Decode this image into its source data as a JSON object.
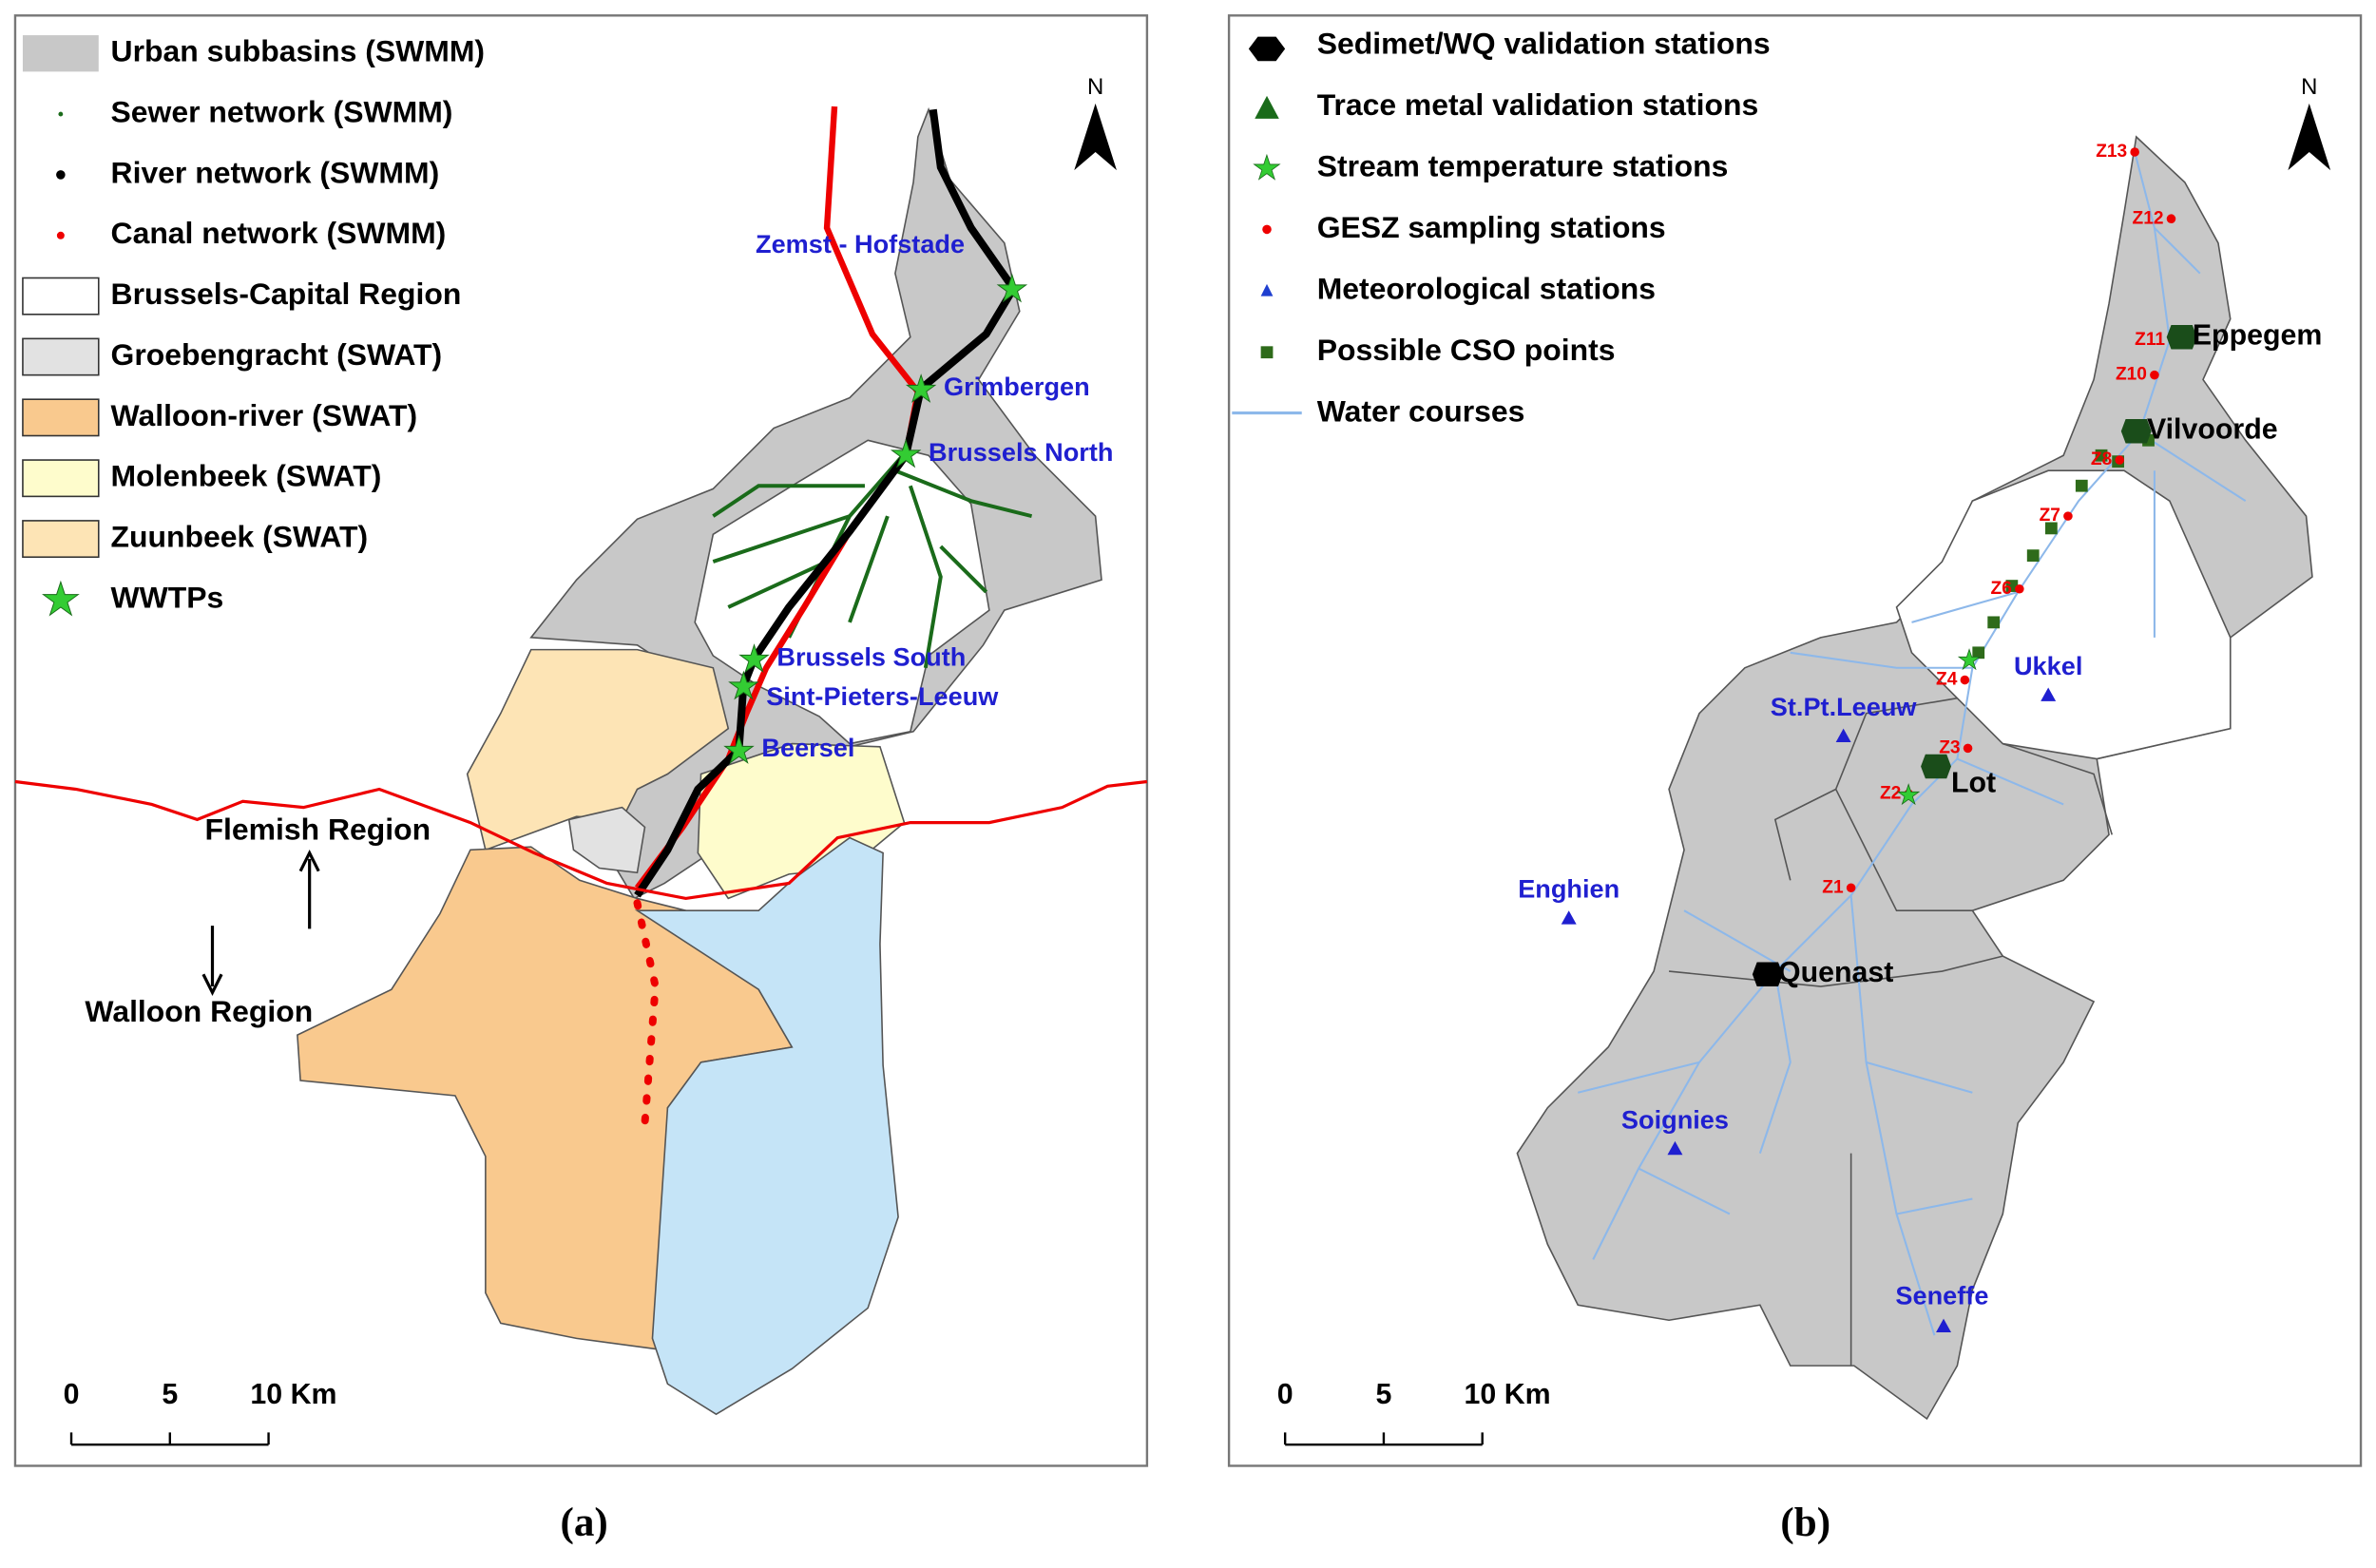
{
  "panel_a": {
    "legend": [
      "Urban subbasins (SWMM)",
      "Sewer network (SWMM)",
      "River network (SWMM)",
      "Canal network (SWMM)",
      "Brussels-Capital Region",
      "Groebengracht (SWAT)",
      "Walloon-river (SWAT)",
      "Molenbeek (SWAT)",
      "Zuunbeek (SWAT)",
      "WWTPs"
    ],
    "places": [
      "Zemst - Hofstade",
      "Grimbergen",
      "Brussels North",
      "Brussels South",
      "Sint-Pieters-Leeuw",
      "Beersel"
    ],
    "regions": [
      "Flemish Region",
      "Walloon Region"
    ],
    "north": "N",
    "scale": [
      "0",
      "5",
      "10 Km"
    ],
    "caption": "(a)"
  },
  "panel_b": {
    "legend": [
      "Sedimet/WQ validation stations",
      "Trace metal validation stations",
      "Stream temperature stations",
      "GESZ sampling stations",
      "Meteorological stations",
      "Possible CSO points",
      "Water courses"
    ],
    "stations": [
      "Z13",
      "Z12",
      "Z11",
      "Z10",
      "Z8",
      "Z7",
      "Z6",
      "Z4",
      "Z3",
      "Z2",
      "Z1"
    ],
    "sites": [
      "Eppegem",
      "Vilvoorde",
      "Lot",
      "Quenast"
    ],
    "meteo": [
      "Ukkel",
      "St.Pt.Leeuw",
      "Enghien",
      "Soignies",
      "Seneffe"
    ],
    "north": "N",
    "scale": [
      "0",
      "5",
      "10 Km"
    ],
    "caption": "(b)"
  }
}
